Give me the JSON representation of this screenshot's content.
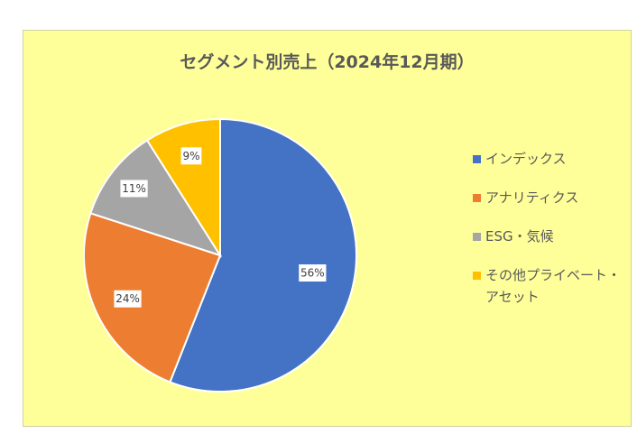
{
  "chart_data": {
    "type": "pie",
    "title": "セグメント別売上（2024年12月期）",
    "categories": [
      "インデックス",
      "アナリティクス",
      "ESG・気候",
      "その他プライベート・アセット"
    ],
    "values": [
      56,
      24,
      11,
      9
    ],
    "labels": [
      "56%",
      "24%",
      "11%",
      "9%"
    ],
    "colors": [
      "#4472c4",
      "#ed7d31",
      "#a5a5a5",
      "#ffc000"
    ],
    "legend_position": "right",
    "start_angle_deg": 0,
    "direction": "clockwise"
  },
  "legend": {
    "items": [
      {
        "label": "インデックス",
        "color": "#4472c4"
      },
      {
        "label": "アナリティクス",
        "color": "#ed7d31"
      },
      {
        "label": "ESG・気候",
        "color": "#a5a5a5"
      },
      {
        "label": "その他プライベート・アセット",
        "color": "#ffc000"
      }
    ]
  }
}
